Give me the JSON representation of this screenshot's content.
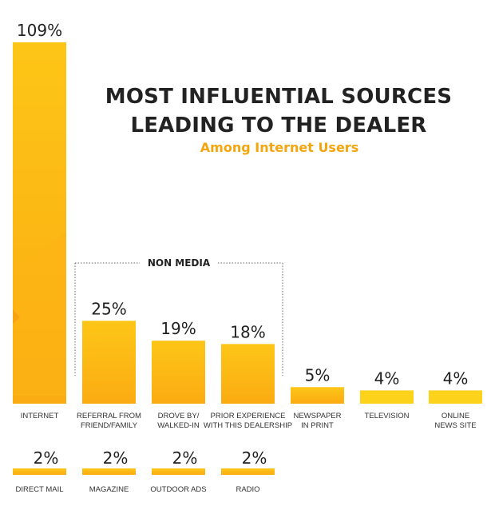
{
  "chart_data": {
    "type": "bar",
    "title_lines": [
      "MOST INFLUENTIAL SOURCES",
      "LEADING TO THE DEALER"
    ],
    "subtitle": "Among Internet Users",
    "group_label": "NON MEDIA",
    "colors": {
      "bar": "#fcb514",
      "bar_light": "#fdd21a",
      "accent": "#f4a50c"
    },
    "row1": [
      {
        "lines": [
          "INTERNET"
        ],
        "value": 109,
        "label": "109%"
      },
      {
        "lines": [
          "REFERRAL FROM",
          "FRIEND/FAMILY"
        ],
        "value": 25,
        "label": "25%"
      },
      {
        "lines": [
          "DROVE BY/",
          "WALKED-IN"
        ],
        "value": 19,
        "label": "19%"
      },
      {
        "lines": [
          "PRIOR EXPERIENCE",
          "WITH THIS DEALERSHIP"
        ],
        "value": 18,
        "label": "18%"
      },
      {
        "lines": [
          "NEWSPAPER",
          "IN PRINT"
        ],
        "value": 5,
        "label": "5%"
      },
      {
        "lines": [
          "TELEVISION"
        ],
        "value": 4,
        "label": "4%"
      },
      {
        "lines": [
          "ONLINE",
          "NEWS SITE"
        ],
        "value": 4,
        "label": "4%"
      }
    ],
    "row2": [
      {
        "lines": [
          "DIRECT MAIL"
        ],
        "value": 2,
        "label": "2%"
      },
      {
        "lines": [
          "MAGAZINE"
        ],
        "value": 2,
        "label": "2%"
      },
      {
        "lines": [
          "OUTDOOR ADS"
        ],
        "value": 2,
        "label": "2%"
      },
      {
        "lines": [
          "RADIO"
        ],
        "value": 2,
        "label": "2%"
      }
    ],
    "ylim": [
      0,
      109
    ]
  }
}
